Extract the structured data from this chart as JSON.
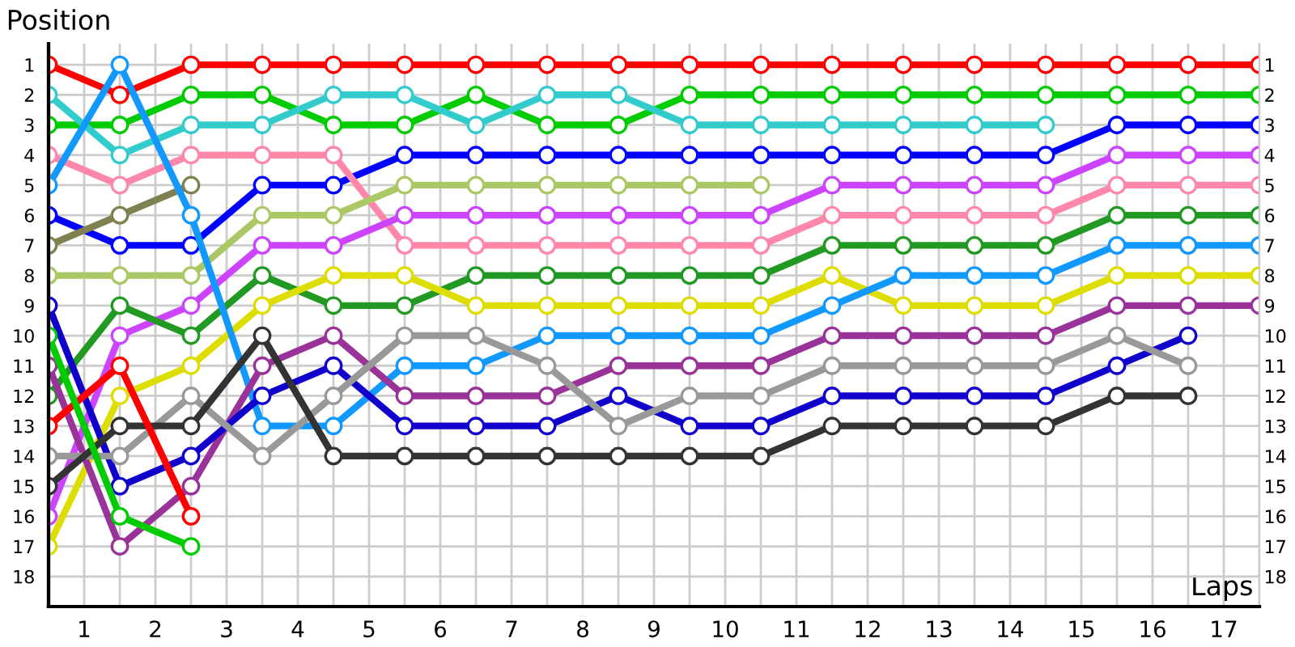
{
  "chart_data": {
    "type": "line",
    "xlabel": "Laps",
    "ylabel": "Position",
    "x": [
      0,
      1,
      2,
      3,
      4,
      5,
      6,
      7,
      8,
      9,
      10,
      11,
      12,
      13,
      14,
      15,
      16,
      17
    ],
    "xlim": [
      0,
      17
    ],
    "xticks": [
      {
        "value": 0,
        "label": null
      },
      {
        "value": 0.5,
        "label": "1"
      },
      {
        "value": 1,
        "label": null
      },
      {
        "value": 1.5,
        "label": "2"
      },
      {
        "value": 2,
        "label": null
      },
      {
        "value": 2.5,
        "label": "3"
      },
      {
        "value": 3,
        "label": null
      },
      {
        "value": 3.5,
        "label": "4"
      },
      {
        "value": 4,
        "label": null
      },
      {
        "value": 4.5,
        "label": "5"
      },
      {
        "value": 5,
        "label": null
      },
      {
        "value": 5.5,
        "label": "6"
      },
      {
        "value": 6,
        "label": null
      },
      {
        "value": 6.5,
        "label": "7"
      },
      {
        "value": 7,
        "label": null
      },
      {
        "value": 7.5,
        "label": "8"
      },
      {
        "value": 8,
        "label": null
      },
      {
        "value": 8.5,
        "label": "9"
      },
      {
        "value": 9,
        "label": null
      },
      {
        "value": 9.5,
        "label": "10"
      },
      {
        "value": 10,
        "label": null
      },
      {
        "value": 10.5,
        "label": "11"
      },
      {
        "value": 11,
        "label": null
      },
      {
        "value": 11.5,
        "label": "12"
      },
      {
        "value": 12,
        "label": null
      },
      {
        "value": 12.5,
        "label": "13"
      },
      {
        "value": 13,
        "label": null
      },
      {
        "value": 13.5,
        "label": "14"
      },
      {
        "value": 14,
        "label": null
      },
      {
        "value": 14.5,
        "label": "15"
      },
      {
        "value": 15,
        "label": null
      },
      {
        "value": 15.5,
        "label": "16"
      },
      {
        "value": 16,
        "label": null
      },
      {
        "value": 16.5,
        "label": "17"
      },
      {
        "value": 17,
        "label": null
      }
    ],
    "ylim": [
      19,
      0.3
    ],
    "yticks": [
      1,
      2,
      3,
      4,
      5,
      6,
      7,
      8,
      9,
      10,
      11,
      12,
      13,
      14,
      15,
      16,
      17,
      18
    ],
    "y2lim": [
      19,
      0.3
    ],
    "y2ticks": [
      1,
      2,
      3,
      4,
      5,
      6,
      7,
      8,
      9,
      10,
      11,
      12,
      13,
      14,
      15,
      16,
      17,
      18
    ],
    "grid": true,
    "legend": false,
    "marker": "circle",
    "line_style": "solid",
    "series": [
      {
        "color": "#ff0000",
        "values": [
          1,
          2,
          1,
          1,
          1,
          1,
          1,
          1,
          1,
          1,
          1,
          1,
          1,
          1,
          1,
          1,
          1,
          1
        ]
      },
      {
        "color": "#00cc00",
        "values": [
          3,
          3,
          2,
          2,
          3,
          3,
          2,
          3,
          3,
          2,
          2,
          2,
          2,
          2,
          2,
          2,
          2,
          2
        ]
      },
      {
        "color": "#33cccc",
        "values": [
          2,
          4,
          3,
          3,
          2,
          2,
          3,
          2,
          2,
          3,
          3,
          3,
          3,
          3,
          3,
          null,
          null,
          null
        ]
      },
      {
        "color": "#0000ff",
        "values": [
          6,
          7,
          7,
          5,
          5,
          4,
          4,
          4,
          4,
          4,
          4,
          4,
          4,
          4,
          4,
          3,
          3,
          3
        ]
      },
      {
        "color": "#ff88aa",
        "values": [
          4,
          5,
          4,
          4,
          4,
          7,
          7,
          7,
          7,
          7,
          7,
          6,
          6,
          6,
          6,
          5,
          5,
          5
        ]
      },
      {
        "color": "#cc44ff",
        "values": [
          16,
          10,
          9,
          7,
          7,
          6,
          6,
          6,
          6,
          6,
          6,
          5,
          5,
          5,
          5,
          4,
          4,
          4
        ]
      },
      {
        "color": "#808050",
        "values": [
          7,
          6,
          5,
          null,
          null,
          null,
          null,
          null,
          null,
          null,
          null,
          null,
          null,
          null,
          null,
          null,
          null,
          null
        ]
      },
      {
        "color": "#aac866",
        "values": [
          8,
          8,
          8,
          6,
          6,
          5,
          5,
          5,
          5,
          5,
          5,
          null,
          null,
          null,
          null,
          null,
          null,
          null
        ]
      },
      {
        "color": "#229922",
        "values": [
          12,
          9,
          10,
          8,
          9,
          9,
          8,
          8,
          8,
          8,
          8,
          7,
          7,
          7,
          7,
          6,
          6,
          6
        ]
      },
      {
        "color": "#dddd00",
        "values": [
          17,
          12,
          11,
          9,
          8,
          8,
          9,
          9,
          9,
          9,
          9,
          8,
          9,
          9,
          9,
          8,
          8,
          8
        ]
      },
      {
        "color": "#1199ff",
        "values": [
          5,
          1,
          6,
          13,
          13,
          11,
          11,
          10,
          10,
          10,
          10,
          9,
          8,
          8,
          8,
          7,
          7,
          7
        ]
      },
      {
        "color": "#993399",
        "values": [
          11,
          17,
          15,
          11,
          10,
          12,
          12,
          12,
          11,
          11,
          11,
          10,
          10,
          10,
          10,
          9,
          9,
          9
        ]
      },
      {
        "color": "#1100cc",
        "values": [
          9,
          15,
          14,
          12,
          11,
          13,
          13,
          13,
          12,
          13,
          13,
          12,
          12,
          12,
          12,
          11,
          10,
          null
        ]
      },
      {
        "color": "#999999",
        "values": [
          14,
          14,
          12,
          14,
          12,
          10,
          10,
          11,
          13,
          12,
          12,
          11,
          11,
          11,
          11,
          10,
          11,
          null
        ]
      },
      {
        "color": "#333333",
        "values": [
          15,
          13,
          13,
          10,
          14,
          14,
          14,
          14,
          14,
          14,
          14,
          13,
          13,
          13,
          13,
          12,
          12,
          null
        ]
      },
      {
        "color": "#ff0000",
        "values": [
          13,
          11,
          16,
          null,
          null,
          null,
          null,
          null,
          null,
          null,
          null,
          null,
          null,
          null,
          null,
          null,
          null,
          null
        ]
      },
      {
        "color": "#00cc00",
        "values": [
          10,
          16,
          17,
          null,
          null,
          null,
          null,
          null,
          null,
          null,
          null,
          null,
          null,
          null,
          null,
          null,
          null,
          null
        ]
      }
    ]
  }
}
